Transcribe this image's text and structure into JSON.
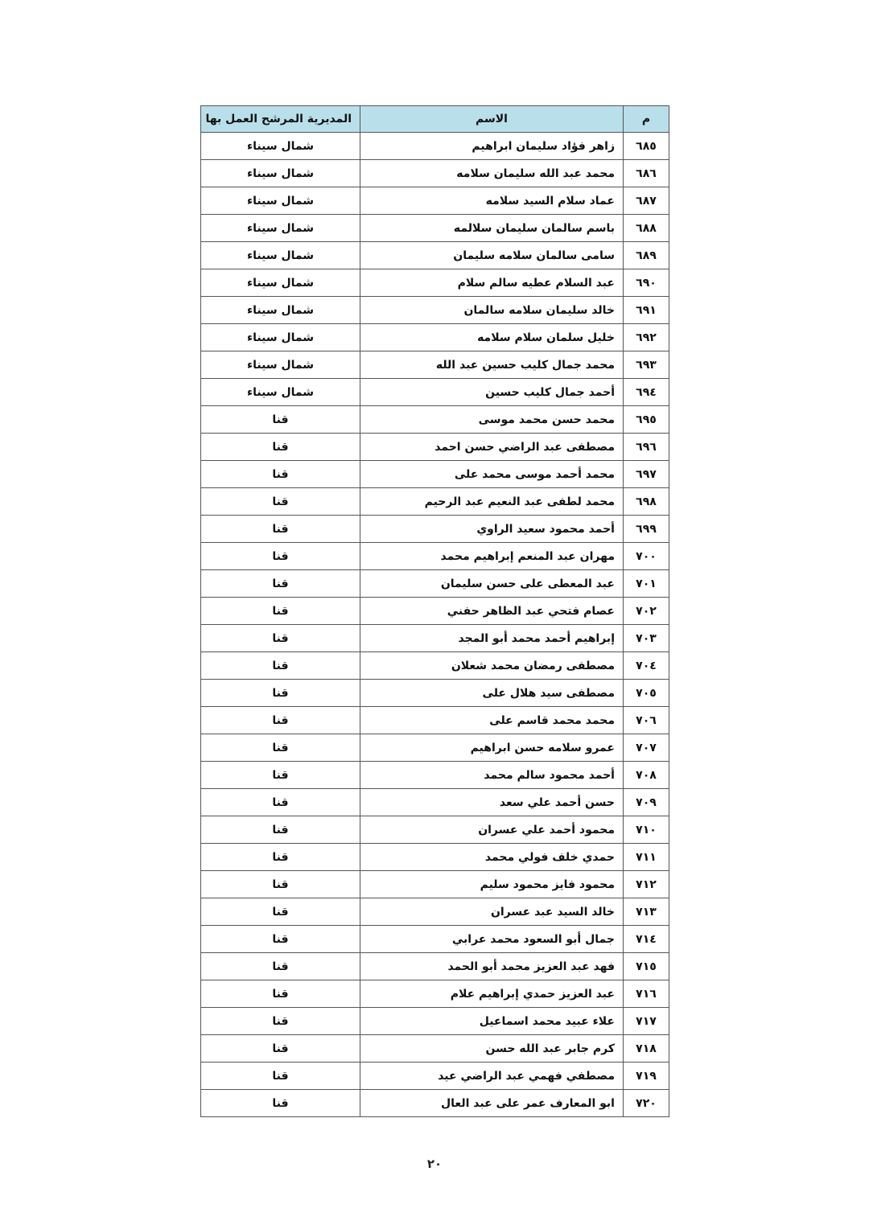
{
  "table": {
    "header": [
      "م",
      "الاسم",
      "المديرية المرشح العمل بها"
    ],
    "rows": [
      [
        "٦٨٥",
        "زاهر فؤاد سليمان ابراهيم",
        "شمال سيناء"
      ],
      [
        "٦٨٦",
        "محمد عبد الله سليمان سلامه",
        "شمال سيناء"
      ],
      [
        "٦٨٧",
        "عماد سلام السيد سلامه",
        "شمال سيناء"
      ],
      [
        "٦٨٨",
        "باسم سالمان سليمان سلالمه",
        "شمال سيناء"
      ],
      [
        "٦٨٩",
        "سامى سالمان سلامه سليمان",
        "شمال سيناء"
      ],
      [
        "٦٩٠",
        "عبد السلام عطيه سالم سلام",
        "شمال سيناء"
      ],
      [
        "٦٩١",
        "خالد سليمان سلامه سالمان",
        "شمال سيناء"
      ],
      [
        "٦٩٢",
        "خليل سلمان سلام سلامه",
        "شمال سيناء"
      ],
      [
        "٦٩٣",
        "محمد جمال كليب حسين عبد الله",
        "شمال سيناء"
      ],
      [
        "٦٩٤",
        "أحمد جمال كليب حسين",
        "شمال سيناء"
      ],
      [
        "٦٩٥",
        "محمد حسن محمد موسى",
        "قنا"
      ],
      [
        "٦٩٦",
        "مصطفى عبد الراضي حسن احمد",
        "قنا"
      ],
      [
        "٦٩٧",
        "محمد أحمد موسى محمد على",
        "قنا"
      ],
      [
        "٦٩٨",
        "محمد لطفى عبد النعيم عبد الرحيم",
        "قنا"
      ],
      [
        "٦٩٩",
        "أحمد محمود سعيد الراوي",
        "قنا"
      ],
      [
        "٧٠٠",
        "مهران عبد المنعم إبراهيم محمد",
        "قنا"
      ],
      [
        "٧٠١",
        "عبد المعطى على حسن سليمان",
        "قنا"
      ],
      [
        "٧٠٢",
        "عصام فتحي عبد الظاهر حفني",
        "قنا"
      ],
      [
        "٧٠٣",
        "إبراهيم أحمد محمد أبو المجد",
        "قنا"
      ],
      [
        "٧٠٤",
        "مصطفى رمضان محمد شعلان",
        "قنا"
      ],
      [
        "٧٠٥",
        "مصطفى سيد هلال على",
        "قنا"
      ],
      [
        "٧٠٦",
        "محمد محمد قاسم على",
        "قنا"
      ],
      [
        "٧٠٧",
        "عمرو سلامه حسن ابراهيم",
        "قنا"
      ],
      [
        "٧٠٨",
        "أحمد محمود سالم محمد",
        "قنا"
      ],
      [
        "٧٠٩",
        "حسن أحمد علي سعد",
        "قنا"
      ],
      [
        "٧١٠",
        "محمود أحمد علي عسران",
        "قنا"
      ],
      [
        "٧١١",
        "حمدي خلف فولي محمد",
        "قنا"
      ],
      [
        "٧١٢",
        "محمود فايز محمود سليم",
        "قنا"
      ],
      [
        "٧١٣",
        "خالد السيد عبد عسران",
        "قنا"
      ],
      [
        "٧١٤",
        "جمال أبو السعود محمد عرابي",
        "قنا"
      ],
      [
        "٧١٥",
        "فهد عبد العزيز محمد أبو الحمد",
        "قنا"
      ],
      [
        "٧١٦",
        "عبد العزيز حمدي إبراهيم علام",
        "قنا"
      ],
      [
        "٧١٧",
        "علاء عبيد محمد اسماعيل",
        "قنا"
      ],
      [
        "٧١٨",
        "كرم جابر عبد الله حسن",
        "قنا"
      ],
      [
        "٧١٩",
        "مصطفي فهمي عبد الراضي عيد",
        "قنا"
      ],
      [
        "٧٢٠",
        "ابو المعارف عمر على عبد العال",
        "قنا"
      ]
    ]
  },
  "page_number": "٢٠"
}
